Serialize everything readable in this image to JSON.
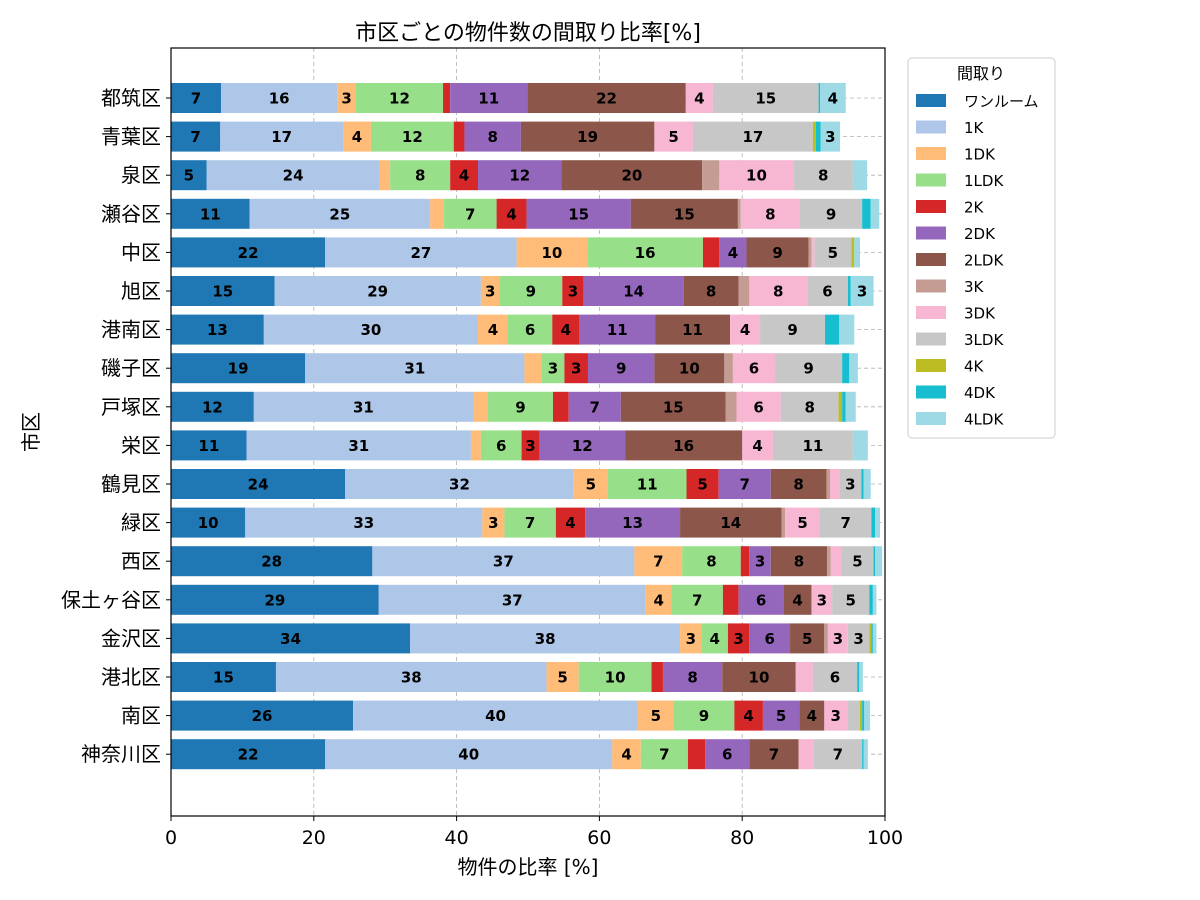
{
  "chart_data": {
    "type": "bar",
    "orientation": "horizontal",
    "stacked": true,
    "title": "市区ごとの物件数の間取り比率[%]",
    "xlabel": "物件の比率 [%]",
    "ylabel": "市区",
    "xlim": [
      0,
      100
    ],
    "xticks": [
      0,
      20,
      40,
      60,
      80,
      100
    ],
    "grid": true,
    "legend_title": "間取り",
    "legend_position": "outside-upper-right",
    "categories": [
      "都筑区",
      "青葉区",
      "泉区",
      "瀬谷区",
      "中区",
      "旭区",
      "港南区",
      "磯子区",
      "戸塚区",
      "栄区",
      "鶴見区",
      "緑区",
      "西区",
      "保土ヶ谷区",
      "金沢区",
      "港北区",
      "南区",
      "神奈川区"
    ],
    "series": [
      {
        "name": "ワンルーム",
        "color": "#1f77b4",
        "values": [
          7.0,
          6.9,
          5.0,
          11.0,
          21.6,
          14.5,
          13.0,
          18.8,
          11.6,
          10.6,
          24.4,
          10.4,
          28.2,
          29.1,
          33.5,
          14.7,
          25.5,
          21.6
        ]
      },
      {
        "name": "1K",
        "color": "#aec7e8",
        "values": [
          16.3,
          17.2,
          24.2,
          25.3,
          26.8,
          28.9,
          30.0,
          30.7,
          30.7,
          31.4,
          32.0,
          33.2,
          36.7,
          37.4,
          37.8,
          37.9,
          39.9,
          40.2
        ]
      },
      {
        "name": "1DK",
        "color": "#ffbb78",
        "values": [
          2.6,
          3.9,
          1.5,
          1.9,
          9.9,
          2.6,
          4.2,
          2.4,
          2.1,
          1.4,
          4.8,
          3.1,
          6.7,
          3.6,
          3.0,
          4.5,
          5.0,
          4.0
        ]
      },
      {
        "name": "1LDK",
        "color": "#98df8a",
        "values": [
          12.2,
          11.6,
          8.4,
          7.4,
          16.2,
          8.8,
          6.2,
          3.2,
          9.1,
          5.7,
          11.0,
          7.2,
          8.2,
          7.2,
          3.7,
          10.2,
          8.5,
          6.6
        ]
      },
      {
        "name": "2K",
        "color": "#d62728",
        "values": [
          1.0,
          1.5,
          3.9,
          4.2,
          2.3,
          3.0,
          3.8,
          3.3,
          2.2,
          2.5,
          4.5,
          4.1,
          1.2,
          2.2,
          3.0,
          1.6,
          4.0,
          2.4
        ]
      },
      {
        "name": "2DK",
        "color": "#9467bd",
        "values": [
          10.8,
          7.9,
          11.7,
          14.6,
          3.8,
          14.0,
          10.6,
          9.3,
          7.3,
          12.0,
          7.3,
          13.3,
          3.0,
          6.3,
          5.7,
          8.3,
          5.1,
          6.2
        ]
      },
      {
        "name": "2LDK",
        "color": "#8c564b",
        "values": [
          22.2,
          18.7,
          19.7,
          15.0,
          8.7,
          7.7,
          10.5,
          9.8,
          14.7,
          16.4,
          7.8,
          14.2,
          7.9,
          3.9,
          4.8,
          10.3,
          3.5,
          6.9
        ]
      },
      {
        "name": "3K",
        "color": "#c49c94",
        "values": [
          0.0,
          0.0,
          2.4,
          0.4,
          0.4,
          1.5,
          0.0,
          1.2,
          1.5,
          0.0,
          0.5,
          0.5,
          0.5,
          0.0,
          0.5,
          0.0,
          0.0,
          0.0
        ]
      },
      {
        "name": "3DK",
        "color": "#f7b6d2",
        "values": [
          3.8,
          5.4,
          10.4,
          8.3,
          0.4,
          8.1,
          4.2,
          5.9,
          6.2,
          4.3,
          1.3,
          4.9,
          1.5,
          2.9,
          2.8,
          2.4,
          3.2,
          2.1
        ]
      },
      {
        "name": "3LDK",
        "color": "#c7c7c7",
        "values": [
          14.8,
          16.8,
          8.3,
          8.7,
          5.2,
          5.7,
          9.1,
          9.4,
          8.1,
          11.2,
          3.1,
          7.2,
          4.5,
          5.2,
          3.0,
          6.2,
          1.8,
          6.8
        ]
      },
      {
        "name": "4K",
        "color": "#bcbd22",
        "values": [
          0.0,
          0.4,
          0.0,
          0.0,
          0.4,
          0.0,
          0.0,
          0.0,
          0.5,
          0.0,
          0.0,
          0.0,
          0.0,
          0.0,
          0.3,
          0.0,
          0.3,
          0.0
        ]
      },
      {
        "name": "4DK",
        "color": "#17becf",
        "values": [
          0.2,
          0.7,
          0.0,
          1.2,
          0.0,
          0.4,
          2.0,
          1.0,
          0.5,
          0.0,
          0.3,
          0.5,
          0.2,
          0.5,
          0.2,
          0.3,
          0.3,
          0.2
        ]
      },
      {
        "name": "4LDK",
        "color": "#9edae5",
        "values": [
          3.6,
          2.7,
          2.0,
          1.2,
          0.8,
          3.2,
          2.1,
          1.2,
          1.4,
          2.1,
          1.0,
          0.7,
          1.0,
          0.5,
          0.5,
          0.5,
          0.8,
          0.6
        ]
      }
    ]
  }
}
